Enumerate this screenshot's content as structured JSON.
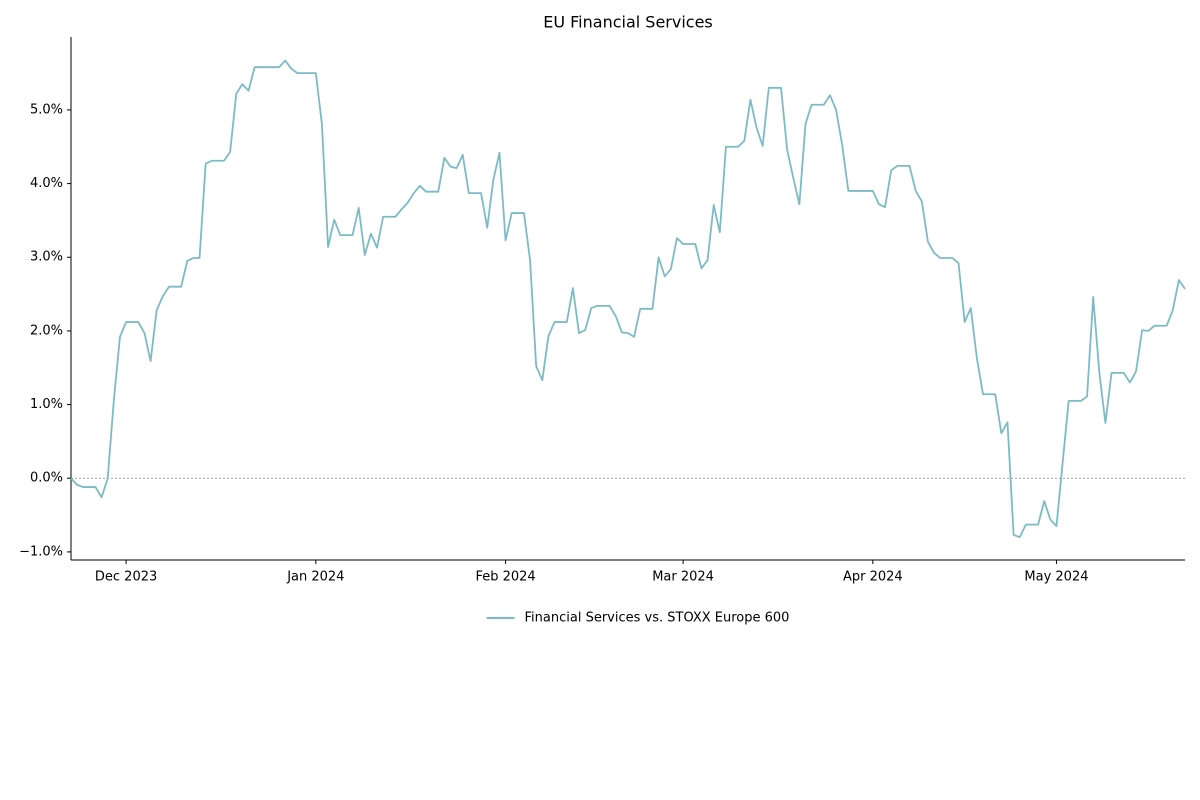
{
  "chart_data": {
    "type": "line",
    "title": "EU Financial Services",
    "x": [
      "2023-11-22",
      "2023-11-23",
      "2023-11-24",
      "2023-11-25",
      "2023-11-26",
      "2023-11-27",
      "2023-11-28",
      "2023-11-29",
      "2023-11-30",
      "2023-12-01",
      "2023-12-02",
      "2023-12-03",
      "2023-12-04",
      "2023-12-05",
      "2023-12-06",
      "2023-12-07",
      "2023-12-08",
      "2023-12-09",
      "2023-12-10",
      "2023-12-11",
      "2023-12-12",
      "2023-12-13",
      "2023-12-14",
      "2023-12-15",
      "2023-12-16",
      "2023-12-17",
      "2023-12-18",
      "2023-12-19",
      "2023-12-20",
      "2023-12-21",
      "2023-12-22",
      "2023-12-23",
      "2023-12-24",
      "2023-12-25",
      "2023-12-26",
      "2023-12-27",
      "2023-12-28",
      "2023-12-29",
      "2023-12-30",
      "2023-12-31",
      "2024-01-01",
      "2024-01-02",
      "2024-01-03",
      "2024-01-04",
      "2024-01-05",
      "2024-01-06",
      "2024-01-07",
      "2024-01-08",
      "2024-01-09",
      "2024-01-10",
      "2024-01-11",
      "2024-01-12",
      "2024-01-13",
      "2024-01-14",
      "2024-01-15",
      "2024-01-16",
      "2024-01-17",
      "2024-01-18",
      "2024-01-19",
      "2024-01-20",
      "2024-01-21",
      "2024-01-22",
      "2024-01-23",
      "2024-01-24",
      "2024-01-25",
      "2024-01-26",
      "2024-01-27",
      "2024-01-28",
      "2024-01-29",
      "2024-01-30",
      "2024-01-31",
      "2024-02-01",
      "2024-02-02",
      "2024-02-03",
      "2024-02-04",
      "2024-02-05",
      "2024-02-06",
      "2024-02-07",
      "2024-02-08",
      "2024-02-09",
      "2024-02-10",
      "2024-02-11",
      "2024-02-12",
      "2024-02-13",
      "2024-02-14",
      "2024-02-15",
      "2024-02-16",
      "2024-02-17",
      "2024-02-18",
      "2024-02-19",
      "2024-02-20",
      "2024-02-21",
      "2024-02-22",
      "2024-02-23",
      "2024-02-24",
      "2024-02-25",
      "2024-02-26",
      "2024-02-27",
      "2024-02-28",
      "2024-02-29",
      "2024-03-01",
      "2024-03-02",
      "2024-03-03",
      "2024-03-04",
      "2024-03-05",
      "2024-03-06",
      "2024-03-07",
      "2024-03-08",
      "2024-03-09",
      "2024-03-10",
      "2024-03-11",
      "2024-03-12",
      "2024-03-13",
      "2024-03-14",
      "2024-03-15",
      "2024-03-16",
      "2024-03-17",
      "2024-03-18",
      "2024-03-19",
      "2024-03-20",
      "2024-03-21",
      "2024-03-22",
      "2024-03-23",
      "2024-03-24",
      "2024-03-25",
      "2024-03-26",
      "2024-03-27",
      "2024-03-28",
      "2024-03-29",
      "2024-03-30",
      "2024-03-31",
      "2024-04-01",
      "2024-04-02",
      "2024-04-03",
      "2024-04-04",
      "2024-04-05",
      "2024-04-06",
      "2024-04-07",
      "2024-04-08",
      "2024-04-09",
      "2024-04-10",
      "2024-04-11",
      "2024-04-12",
      "2024-04-13",
      "2024-04-14",
      "2024-04-15",
      "2024-04-16",
      "2024-04-17",
      "2024-04-18",
      "2024-04-19",
      "2024-04-20",
      "2024-04-21",
      "2024-04-22",
      "2024-04-23",
      "2024-04-24",
      "2024-04-25",
      "2024-04-26",
      "2024-04-27",
      "2024-04-28",
      "2024-04-29",
      "2024-04-30",
      "2024-05-01",
      "2024-05-02",
      "2024-05-03",
      "2024-05-04",
      "2024-05-05",
      "2024-05-06",
      "2024-05-07",
      "2024-05-08",
      "2024-05-09",
      "2024-05-10",
      "2024-05-11",
      "2024-05-12",
      "2024-05-13",
      "2024-05-14",
      "2024-05-15",
      "2024-05-16",
      "2024-05-17",
      "2024-05-18",
      "2024-05-19",
      "2024-05-20",
      "2024-05-21",
      "2024-05-22"
    ],
    "series": [
      {
        "name": "Financial Services vs. STOXX Europe 600",
        "color": "#7bbcc4",
        "values": [
          0.0,
          -0.09,
          -0.12,
          -0.12,
          -0.12,
          -0.26,
          0.0,
          1.06,
          1.92,
          2.12,
          2.12,
          2.12,
          1.97,
          1.59,
          2.28,
          2.47,
          2.6,
          2.6,
          2.6,
          2.95,
          2.99,
          2.99,
          4.27,
          4.31,
          4.31,
          4.31,
          4.43,
          5.22,
          5.35,
          5.26,
          5.58,
          5.58,
          5.58,
          5.58,
          5.58,
          5.67,
          5.56,
          5.5,
          5.5,
          5.5,
          5.5,
          4.8,
          3.14,
          3.51,
          3.3,
          3.3,
          3.3,
          3.67,
          3.03,
          3.32,
          3.13,
          3.55,
          3.55,
          3.55,
          3.65,
          3.74,
          3.87,
          3.97,
          3.89,
          3.89,
          3.89,
          4.35,
          4.23,
          4.21,
          4.39,
          3.87,
          3.87,
          3.87,
          3.4,
          4.05,
          4.42,
          3.23,
          3.6,
          3.6,
          3.6,
          2.96,
          1.52,
          1.33,
          1.93,
          2.12,
          2.12,
          2.12,
          2.58,
          1.97,
          2.01,
          2.31,
          2.34,
          2.34,
          2.34,
          2.2,
          1.98,
          1.97,
          1.92,
          2.3,
          2.3,
          2.3,
          3.0,
          2.74,
          2.84,
          3.26,
          3.18,
          3.18,
          3.18,
          2.85,
          2.96,
          3.71,
          3.34,
          4.5,
          4.5,
          4.5,
          4.58,
          5.14,
          4.76,
          4.51,
          5.3,
          5.3,
          5.3,
          4.46,
          4.08,
          3.72,
          4.81,
          5.07,
          5.07,
          5.07,
          5.2,
          5.0,
          4.52,
          3.9,
          3.9,
          3.9,
          3.9,
          3.9,
          3.72,
          3.68,
          4.18,
          4.24,
          4.24,
          4.24,
          3.9,
          3.76,
          3.21,
          3.06,
          2.99,
          2.99,
          2.99,
          2.92,
          2.12,
          2.31,
          1.63,
          1.14,
          1.14,
          1.14,
          0.61,
          0.76,
          -0.77,
          -0.8,
          -0.63,
          -0.63,
          -0.63,
          -0.31,
          -0.56,
          -0.65,
          0.2,
          1.05,
          1.05,
          1.05,
          1.11,
          2.46,
          1.44,
          0.75,
          1.43,
          1.43,
          1.43,
          1.3,
          1.45,
          2.01,
          2.0,
          2.07,
          2.07,
          2.07,
          2.28,
          2.69,
          2.57
        ]
      }
    ],
    "xlim": [
      "2023-11-22",
      "2024-05-22"
    ],
    "xticks": [
      {
        "value": "2023-12-01",
        "label": "Dec 2023"
      },
      {
        "value": "2024-01-01",
        "label": "Jan 2024"
      },
      {
        "value": "2024-02-01",
        "label": "Feb 2024"
      },
      {
        "value": "2024-03-01",
        "label": "Mar 2024"
      },
      {
        "value": "2024-04-01",
        "label": "Apr 2024"
      },
      {
        "value": "2024-05-01",
        "label": "May 2024"
      }
    ],
    "ylim": [
      -1.11,
      5.99
    ],
    "yticks": [
      {
        "value": -1,
        "label": "−1.0%"
      },
      {
        "value": 0,
        "label": "0.0%"
      },
      {
        "value": 1,
        "label": "1.0%"
      },
      {
        "value": 2,
        "label": "2.0%"
      },
      {
        "value": 3,
        "label": "3.0%"
      },
      {
        "value": 4,
        "label": "4.0%"
      },
      {
        "value": 5,
        "label": "5.0%"
      }
    ],
    "hlines": [
      0
    ],
    "grid": false,
    "legend": "bottom"
  }
}
